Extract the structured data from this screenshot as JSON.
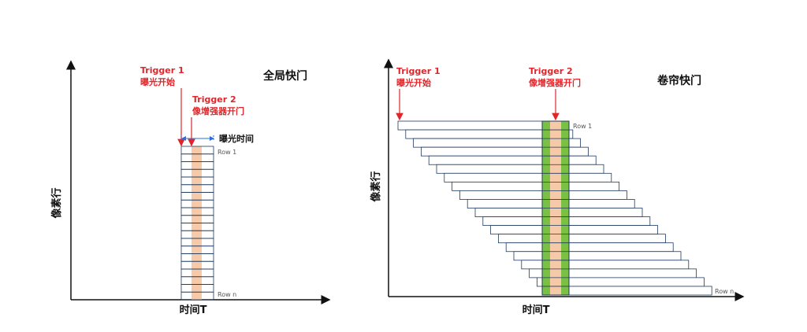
{
  "left_panel": {
    "title": "全局快门",
    "y_label": "像素行",
    "x_label": "时间T",
    "trigger1": {
      "label": "Trigger  1",
      "sub": "曝光开始"
    },
    "trigger2": {
      "label": "Trigger  2",
      "sub": "像增强器开门"
    },
    "exposure_label": "曝光时间",
    "row_first": "Row 1",
    "row_last": "Row n",
    "row_count": 20
  },
  "right_panel": {
    "title": "卷帘快门",
    "y_label": "像素行",
    "x_label": "时间T",
    "trigger1": {
      "label": "Trigger  1",
      "sub": "曝光开始"
    },
    "trigger2": {
      "label": "Trigger  2",
      "sub": "像增强器开门"
    },
    "row_first": "Row 1",
    "row_last": "Row n",
    "row_count": 20
  },
  "colors": {
    "row_stroke": "#1f3a5f",
    "intensifier_fill": "#f6c9a8",
    "gate_green": "#7ac143",
    "trigger_red": "#e0262b",
    "exposure_arrow": "#2a6fdb"
  }
}
